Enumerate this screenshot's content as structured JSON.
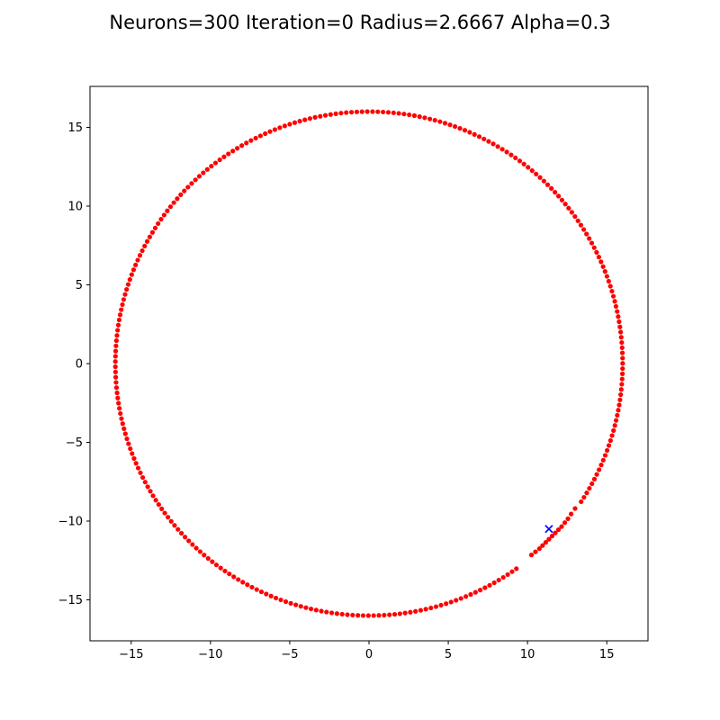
{
  "chart_data": {
    "type": "scatter",
    "title": "Neurons=300 Iteration=0 Radius=2.6667 Alpha=0.3",
    "xlabel": "",
    "ylabel": "",
    "xlim": [
      -17.6,
      17.6
    ],
    "ylim": [
      -17.6,
      17.6
    ],
    "grid": false,
    "x_ticks": [
      {
        "value": -15,
        "label": "−15"
      },
      {
        "value": -10,
        "label": "−10"
      },
      {
        "value": -5,
        "label": "−5"
      },
      {
        "value": 0,
        "label": "0"
      },
      {
        "value": 5,
        "label": "5"
      },
      {
        "value": 10,
        "label": "10"
      },
      {
        "value": 15,
        "label": "15"
      }
    ],
    "y_ticks": [
      {
        "value": 15,
        "label": "15"
      },
      {
        "value": 10,
        "label": "10"
      },
      {
        "value": 5,
        "label": "5"
      },
      {
        "value": 0,
        "label": "0"
      },
      {
        "value": -5,
        "label": "−5"
      },
      {
        "value": -10,
        "label": "−10"
      },
      {
        "value": -15,
        "label": "−15"
      }
    ],
    "series": [
      {
        "marker": "dot",
        "color": "#ff0000",
        "shape": "circle-ring",
        "count": 300,
        "center": [
          0,
          0
        ],
        "radius": 16,
        "displaced_points": [
          [
            10.25,
            -12.15
          ],
          [
            10.5,
            -11.95
          ],
          [
            10.75,
            -11.75
          ],
          [
            10.95,
            -11.55
          ],
          [
            11.15,
            -11.35
          ],
          [
            11.35,
            -11.15
          ],
          [
            11.55,
            -10.95
          ],
          [
            11.75,
            -10.75
          ],
          [
            11.95,
            -10.55
          ],
          [
            12.15,
            -10.35
          ],
          [
            12.35,
            -10.1
          ],
          [
            12.55,
            -9.85
          ],
          [
            12.75,
            -9.55
          ],
          [
            13.0,
            -9.2
          ]
        ]
      },
      {
        "marker": "x",
        "color": "#0000ff",
        "points": [
          [
            11.35,
            -10.5
          ]
        ]
      }
    ]
  }
}
